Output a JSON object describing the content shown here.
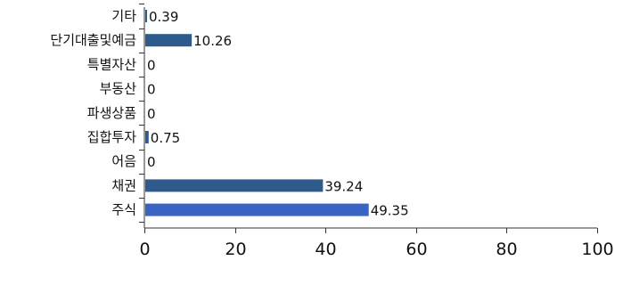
{
  "chart_data": {
    "type": "bar",
    "orientation": "horizontal",
    "categories": [
      "기타",
      "단기대출및예금",
      "특별자산",
      "부동산",
      "파생상품",
      "집합투자",
      "어음",
      "채권",
      "주식"
    ],
    "values": [
      0.39,
      10.26,
      0,
      0,
      0,
      0.75,
      0,
      39.24,
      49.35
    ],
    "value_labels": [
      "0.39",
      "10.26",
      "0",
      "0",
      "0",
      "0.75",
      "0",
      "39.24",
      "49.35"
    ],
    "xlim": [
      0,
      100
    ],
    "xticks": [
      "0",
      "20",
      "40",
      "60",
      "80",
      "100"
    ],
    "colors": {
      "bar": "#2f5b8c",
      "bar_highlight": "#3a64c4",
      "axis": "#333333"
    },
    "highlight_index": 8,
    "grid": false,
    "legend": "none",
    "title": "",
    "xlabel": "",
    "ylabel": ""
  }
}
